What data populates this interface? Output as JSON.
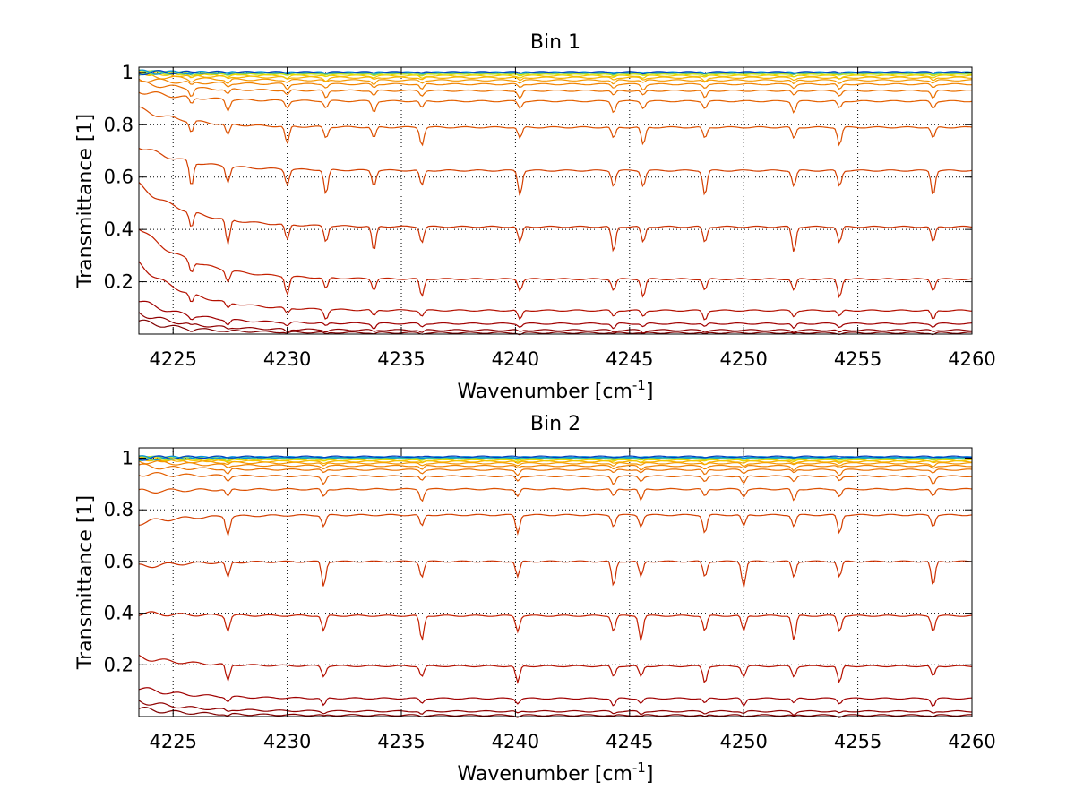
{
  "figure": {
    "background": "#ffffff"
  },
  "chart_data": [
    {
      "type": "line",
      "title": "Bin 1",
      "xlabel": "Wavenumber [cm",
      "xlabel_sup": "-1",
      "xlabel_end": "]",
      "ylabel": "Transmittance [1]",
      "xlim": [
        4223.5,
        4260
      ],
      "ylim": [
        0,
        1.02
      ],
      "xticks": [
        4225,
        4230,
        4235,
        4240,
        4245,
        4250,
        4255,
        4260
      ],
      "yticks": [
        0.2,
        0.4,
        0.6,
        0.8,
        1
      ],
      "ytick_labels": [
        "0.2",
        "0.4",
        "0.6",
        "0.8",
        "1"
      ],
      "grid": true,
      "grid_style": "dotted",
      "absorption_lines": [
        4225.8,
        4227.4,
        4230.0,
        4231.7,
        4233.8,
        4235.9,
        4240.2,
        4244.3,
        4245.6,
        4248.3,
        4252.2,
        4254.2,
        4258.3
      ],
      "series": [
        {
          "color": "#7f0000",
          "start": 0.05,
          "plateau": 0.005
        },
        {
          "color": "#900000",
          "start": 0.08,
          "plateau": 0.015
        },
        {
          "color": "#a00000",
          "start": 0.13,
          "plateau": 0.04
        },
        {
          "color": "#b41000",
          "start": 0.27,
          "plateau": 0.09
        },
        {
          "color": "#c42000",
          "start": 0.41,
          "plateau": 0.21
        },
        {
          "color": "#cc3000",
          "start": 0.57,
          "plateau": 0.41
        },
        {
          "color": "#d44000",
          "start": 0.72,
          "plateau": 0.625
        },
        {
          "color": "#dc5000",
          "start": 0.86,
          "plateau": 0.79
        },
        {
          "color": "#e46000",
          "start": 0.93,
          "plateau": 0.89
        },
        {
          "color": "#ea7000",
          "start": 0.96,
          "plateau": 0.93
        },
        {
          "color": "#f08200",
          "start": 0.975,
          "plateau": 0.955
        },
        {
          "color": "#f59800",
          "start": 0.99,
          "plateau": 0.97
        },
        {
          "color": "#f8b000",
          "start": 1.0,
          "plateau": 0.98
        },
        {
          "color": "#f2c800",
          "start": 1.0,
          "plateau": 0.987
        },
        {
          "color": "#e0dc00",
          "start": 1.0,
          "plateau": 0.992
        },
        {
          "color": "#b8e020",
          "start": 1.0,
          "plateau": 0.995
        },
        {
          "color": "#80d060",
          "start": 1.0,
          "plateau": 0.997
        },
        {
          "color": "#30c0b0",
          "start": 1.0,
          "plateau": 0.999
        },
        {
          "color": "#0090e0",
          "start": 1.0,
          "plateau": 1.0
        },
        {
          "color": "#0040c0",
          "start": 1.0,
          "plateau": 1.001
        }
      ]
    },
    {
      "type": "line",
      "title": "Bin 2",
      "xlabel": "Wavenumber [cm",
      "xlabel_sup": "-1",
      "xlabel_end": "]",
      "ylabel": "Transmittance [1]",
      "xlim": [
        4223.5,
        4260
      ],
      "ylim": [
        0,
        1.04
      ],
      "xticks": [
        4225,
        4230,
        4235,
        4240,
        4245,
        4250,
        4255,
        4260
      ],
      "yticks": [
        0.2,
        0.4,
        0.6,
        0.8,
        1
      ],
      "ytick_labels": [
        "0.2",
        "0.4",
        "0.6",
        "0.8",
        "1"
      ],
      "grid": true,
      "grid_style": "dotted",
      "absorption_lines": [
        4227.4,
        4231.6,
        4235.9,
        4240.1,
        4244.3,
        4245.5,
        4248.3,
        4250.0,
        4252.2,
        4254.2,
        4258.3
      ],
      "series": [
        {
          "color": "#7f0000",
          "start": 0.03,
          "plateau": 0.005
        },
        {
          "color": "#900000",
          "start": 0.06,
          "plateau": 0.02
        },
        {
          "color": "#a00000",
          "start": 0.11,
          "plateau": 0.07
        },
        {
          "color": "#b41000",
          "start": 0.23,
          "plateau": 0.195
        },
        {
          "color": "#c42000",
          "start": 0.4,
          "plateau": 0.39
        },
        {
          "color": "#cc3000",
          "start": 0.58,
          "plateau": 0.6
        },
        {
          "color": "#d44000",
          "start": 0.75,
          "plateau": 0.78
        },
        {
          "color": "#dc5000",
          "start": 0.87,
          "plateau": 0.88
        },
        {
          "color": "#e46000",
          "start": 0.94,
          "plateau": 0.93
        },
        {
          "color": "#ea7000",
          "start": 0.97,
          "plateau": 0.955
        },
        {
          "color": "#f08200",
          "start": 0.99,
          "plateau": 0.97
        },
        {
          "color": "#f59800",
          "start": 1.0,
          "plateau": 0.98
        },
        {
          "color": "#f8b000",
          "start": 1.0,
          "plateau": 0.987
        },
        {
          "color": "#f2c800",
          "start": 1.0,
          "plateau": 0.992
        },
        {
          "color": "#e0dc00",
          "start": 1.0,
          "plateau": 0.996
        },
        {
          "color": "#b8e020",
          "start": 1.0,
          "plateau": 0.998
        },
        {
          "color": "#80d060",
          "start": 1.0,
          "plateau": 1.0
        },
        {
          "color": "#30c0b0",
          "start": 1.0,
          "plateau": 1.002
        },
        {
          "color": "#0090e0",
          "start": 1.0,
          "plateau": 1.004
        },
        {
          "color": "#0040c0",
          "start": 1.0,
          "plateau": 1.006
        }
      ]
    }
  ]
}
